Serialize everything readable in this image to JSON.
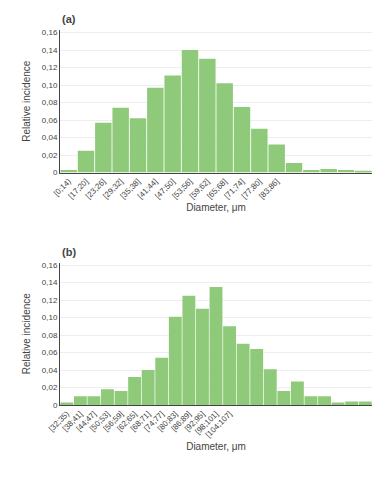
{
  "chart_data": [
    {
      "type": "bar",
      "annotations": [
        "(a)"
      ],
      "xlabel": "Diameter, μm",
      "ylabel": "Relative incidence",
      "categories": [
        "[0;14)",
        "[17;20]",
        "[23;26]",
        "[29;32]",
        "[35;38]",
        "[41;44]",
        "[47;50]",
        "[53;56]",
        "[59;62]",
        "[65;68]",
        "[71;74]",
        "[77;80]",
        "[83;86]",
        null,
        null,
        null,
        null,
        null
      ],
      "values": [
        0.003,
        0.025,
        0.057,
        0.074,
        0.062,
        0.097,
        0.111,
        0.14,
        0.13,
        0.102,
        0.075,
        0.05,
        0.032,
        0.011,
        0.003,
        0.004,
        0.003,
        0.002
      ],
      "color": "#8fca7a",
      "ylim": [
        0,
        0.163
      ],
      "yticks": [
        0,
        {
          "value": 0.02,
          "label": "0,02"
        },
        {
          "value": 0.04,
          "label": "0,04"
        },
        {
          "value": 0.06,
          "label": "0,06"
        },
        {
          "value": 0.08,
          "label": "0,08"
        },
        {
          "value": 0.1,
          "label": "0,10"
        },
        {
          "value": 0.12,
          "label": "0,12"
        },
        {
          "value": 0.14,
          "label": "0,14"
        },
        {
          "value": 0.16,
          "label": "0,16"
        }
      ],
      "grid": true
    },
    {
      "type": "bar",
      "annotations": [
        "(b)"
      ],
      "xlabel": "Diameter, μm",
      "ylabel": "Relative incidence",
      "categories": [
        "[32;35)",
        "[38;41]",
        "[44;47]",
        "[50;53]",
        "[56;59]",
        "[62;65]",
        "[68;71]",
        "[74;77]",
        "[80;83]",
        "[86;89]",
        "[92;95]",
        "[98;101]",
        "[104;107]",
        null,
        null,
        null,
        null,
        null,
        null,
        null,
        null,
        null,
        null
      ],
      "values": [
        0.003,
        0.01,
        0.01,
        0.018,
        0.016,
        0.032,
        0.04,
        0.054,
        0.101,
        0.125,
        0.11,
        0.135,
        0.09,
        0.07,
        0.064,
        0.041,
        0.016,
        0.027,
        0.01,
        0.01,
        0.003,
        0.004,
        0.004
      ],
      "color": "#8fca7a",
      "ylim": [
        0,
        0.163
      ],
      "yticks": [
        0,
        {
          "value": 0.02,
          "label": "0,02"
        },
        {
          "value": 0.04,
          "label": "0,04"
        },
        {
          "value": 0.06,
          "label": "0,06"
        },
        {
          "value": 0.08,
          "label": "0,08"
        },
        {
          "value": 0.1,
          "label": "0,10"
        },
        {
          "value": 0.12,
          "label": "0,12"
        },
        {
          "value": 0.14,
          "label": "0,14"
        },
        {
          "value": 0.16,
          "label": "0,16"
        }
      ],
      "grid": true
    }
  ]
}
